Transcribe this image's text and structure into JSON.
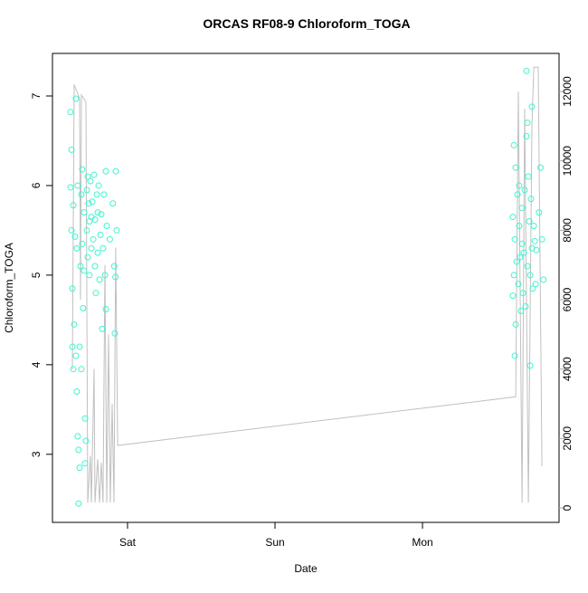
{
  "chart_data": {
    "type": "scatter",
    "title": "ORCAS RF08-9 Chloroform_TOGA",
    "xlabel": "Date",
    "ylabel": "Chloroform_TOGA",
    "xlim": [
      0.491,
      3.926
    ],
    "xticks": [
      {
        "value": 1,
        "label": "Sat"
      },
      {
        "value": 2,
        "label": "Sun"
      },
      {
        "value": 3,
        "label": "Mon"
      }
    ],
    "ylim": [
      2.24,
      7.475
    ],
    "yticks": [
      3,
      4,
      5,
      6,
      7
    ],
    "y2lim": [
      -418,
      13097
    ],
    "y2ticks": [
      0,
      2000,
      4000,
      6000,
      8000,
      10000,
      12000
    ],
    "points": {
      "color": "#3df5d0",
      "x": [
        0.613,
        0.613,
        0.62,
        0.62,
        0.626,
        0.626,
        0.632,
        0.632,
        0.638,
        0.644,
        0.65,
        0.65,
        0.656,
        0.656,
        0.662,
        0.662,
        0.668,
        0.668,
        0.675,
        0.675,
        0.681,
        0.687,
        0.687,
        0.693,
        0.693,
        0.699,
        0.705,
        0.705,
        0.712,
        0.712,
        0.718,
        0.724,
        0.724,
        0.73,
        0.73,
        0.736,
        0.742,
        0.742,
        0.748,
        0.755,
        0.755,
        0.761,
        0.767,
        0.773,
        0.779,
        0.779,
        0.785,
        0.792,
        0.798,
        0.798,
        0.804,
        0.81,
        0.816,
        0.822,
        0.828,
        0.834,
        0.84,
        0.847,
        0.853,
        0.853,
        0.859,
        0.88,
        0.9,
        0.91,
        0.914,
        0.918,
        0.92,
        0.926,
        3.613,
        3.613,
        3.62,
        3.62,
        3.626,
        3.626,
        3.632,
        3.632,
        3.638,
        3.644,
        3.65,
        3.656,
        3.656,
        3.662,
        3.668,
        3.675,
        3.675,
        3.681,
        3.687,
        3.693,
        3.699,
        3.705,
        3.705,
        3.712,
        3.712,
        3.718,
        3.724,
        3.73,
        3.73,
        3.736,
        3.742,
        3.742,
        3.748,
        3.755,
        3.761,
        3.767,
        3.773,
        3.79,
        3.8,
        3.81,
        3.82
      ],
      "values": [
        6.82,
        5.98,
        6.4,
        5.5,
        4.85,
        4.2,
        5.78,
        3.95,
        4.45,
        5.43,
        6.97,
        4.1,
        3.7,
        5.3,
        6.0,
        3.2,
        2.45,
        3.05,
        2.85,
        4.2,
        5.1,
        5.9,
        3.95,
        6.18,
        5.35,
        4.63,
        5.7,
        5.05,
        3.4,
        2.9,
        3.15,
        5.95,
        5.5,
        6.1,
        5.2,
        5.8,
        5.6,
        5.0,
        6.05,
        5.65,
        5.3,
        5.82,
        5.4,
        6.12,
        5.62,
        5.1,
        4.8,
        5.9,
        5.25,
        5.7,
        6.0,
        4.95,
        5.45,
        5.68,
        4.4,
        5.3,
        5.9,
        5.0,
        4.62,
        6.16,
        5.55,
        5.4,
        5.8,
        5.1,
        4.35,
        4.98,
        6.16,
        5.5,
        5.65,
        4.77,
        6.45,
        5.0,
        4.1,
        5.4,
        6.2,
        4.45,
        5.15,
        5.9,
        4.9,
        5.55,
        6.0,
        5.2,
        4.6,
        5.75,
        5.35,
        4.8,
        5.25,
        5.95,
        4.65,
        7.28,
        6.55,
        6.7,
        5.1,
        6.1,
        5.6,
        5.0,
        3.99,
        5.85,
        6.88,
        5.3,
        4.85,
        5.55,
        5.38,
        4.9,
        5.28,
        5.7,
        6.2,
        5.4,
        4.95
      ]
    },
    "line": {
      "color": "#c0c0c0",
      "axis": "y2",
      "x": [
        0.626,
        0.638,
        0.675,
        0.681,
        0.687,
        0.718,
        0.73,
        0.748,
        0.755,
        0.773,
        0.779,
        0.798,
        0.81,
        0.822,
        0.834,
        0.847,
        0.859,
        0.871,
        0.883,
        0.896,
        0.908,
        0.92,
        0.933,
        3.632,
        3.65,
        3.675,
        3.693,
        3.718,
        3.742,
        3.755,
        3.785,
        3.81
      ],
      "values": [
        4000,
        12200,
        11800,
        6000,
        11900,
        11700,
        150,
        1500,
        150,
        4000,
        150,
        1400,
        150,
        1300,
        150,
        7000,
        150,
        5000,
        150,
        3000,
        150,
        7500,
        1800,
        3200,
        12000,
        150,
        11500,
        150,
        11000,
        12700,
        12700,
        1200
      ]
    }
  }
}
